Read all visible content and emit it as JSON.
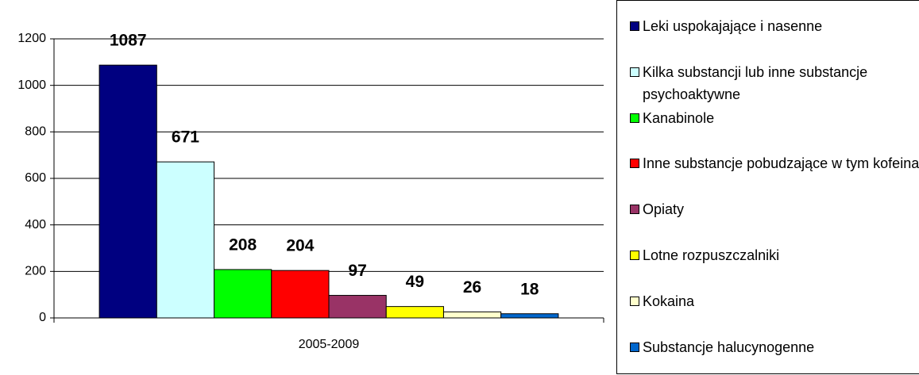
{
  "chart_data": {
    "type": "bar",
    "categories": [
      "2005-2009"
    ],
    "series": [
      {
        "name": "Leki uspokajające i nasenne",
        "color": "#000080",
        "values": [
          1087
        ]
      },
      {
        "name": "Kilka substancji lub inne substancje psychoaktywne",
        "color": "#ccffff",
        "values": [
          671
        ]
      },
      {
        "name": "Kanabinole",
        "color": "#00ff00",
        "values": [
          208
        ]
      },
      {
        "name": "Inne substancje pobudzające w tym kofeina",
        "color": "#ff0000",
        "values": [
          204
        ]
      },
      {
        "name": "Opiaty",
        "color": "#993366",
        "values": [
          97
        ]
      },
      {
        "name": "Lotne rozpuszczalniki",
        "color": "#ffff00",
        "values": [
          49
        ]
      },
      {
        "name": "Kokaina",
        "color": "#ffffcc",
        "values": [
          26
        ]
      },
      {
        "name": "Substancje halucynogenne",
        "color": "#0066cc",
        "values": [
          18
        ]
      }
    ],
    "ylim": [
      0,
      1200
    ],
    "yticks": [
      0,
      200,
      400,
      600,
      800,
      1000,
      1200
    ],
    "grid": true,
    "legend": "right"
  }
}
